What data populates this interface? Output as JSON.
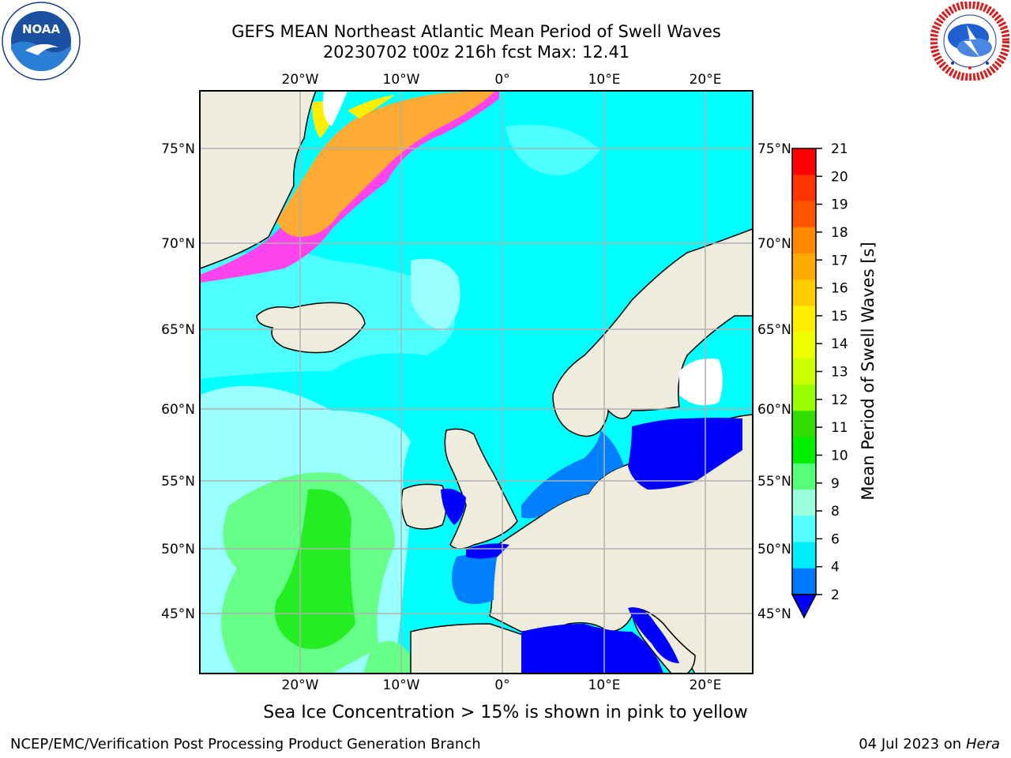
{
  "header": {
    "title_line1": "GEFS MEAN Northeast Atlantic Mean Period of Swell Waves",
    "title_line2": "20230702 t00z 216h fcst   Max: 12.41"
  },
  "logos": {
    "noaa": {
      "text": "NOAA",
      "ring_text": "NATIONAL OCEANIC AND ATMOSPHERIC ADMINISTRATION · U.S. DEPARTMENT OF COMMERCE"
    },
    "nws": {
      "ring_text": "NATIONAL WEATHER SERVICE"
    }
  },
  "map": {
    "lon_labels_top": [
      "20°W",
      "10°W",
      "0°",
      "10°E",
      "20°E"
    ],
    "lon_labels_bottom": [
      "20°W",
      "10°W",
      "0°",
      "10°E",
      "20°E"
    ],
    "lat_labels_left": [
      "75°N",
      "70°N",
      "65°N",
      "60°N",
      "55°N",
      "50°N",
      "45°N"
    ],
    "lat_labels_right": [
      "75°N",
      "70°N",
      "65°N",
      "60°N",
      "55°N",
      "50°N",
      "45°N"
    ],
    "colors": {
      "land": "#eeecdc",
      "ocean_2_4": "#0000ff",
      "ocean_4_6": "#0080ff",
      "ocean_6_8": "#00ffff",
      "ocean_8_9": "#4dffff",
      "ocean_9_10": "#99ffff",
      "ocean_10_11": "#66ff88",
      "ocean_11_12": "#22ee22",
      "ice_pink": "#ff44ee",
      "ice_orange": "#ffaa33",
      "ice_yellow": "#ffee00"
    }
  },
  "colorbar": {
    "title": "Mean Period of Swell Waves [s]",
    "ticks": [
      "21",
      "20",
      "19",
      "18",
      "17",
      "16",
      "15",
      "14",
      "13",
      "12",
      "11",
      "10",
      "9",
      "8",
      "6",
      "4",
      "2"
    ],
    "bands_top_to_bottom": [
      "#ff0000",
      "#ff3300",
      "#ff5500",
      "#ff8800",
      "#ffaa00",
      "#ffcc00",
      "#ffee00",
      "#eeff00",
      "#ccff00",
      "#99ff00",
      "#33dd00",
      "#00ee00",
      "#55ff77",
      "#99ffdd",
      "#55ffff",
      "#00eeff",
      "#0077ff"
    ],
    "extend_color": "#0000ff"
  },
  "footer": {
    "ice_note": "Sea Ice Concentration > 15% is shown in pink to yellow",
    "credit": "NCEP/EMC/Verification Post Processing Product Generation Branch",
    "date_prefix": "04 Jul 2023 on ",
    "date_host": "Hera"
  }
}
